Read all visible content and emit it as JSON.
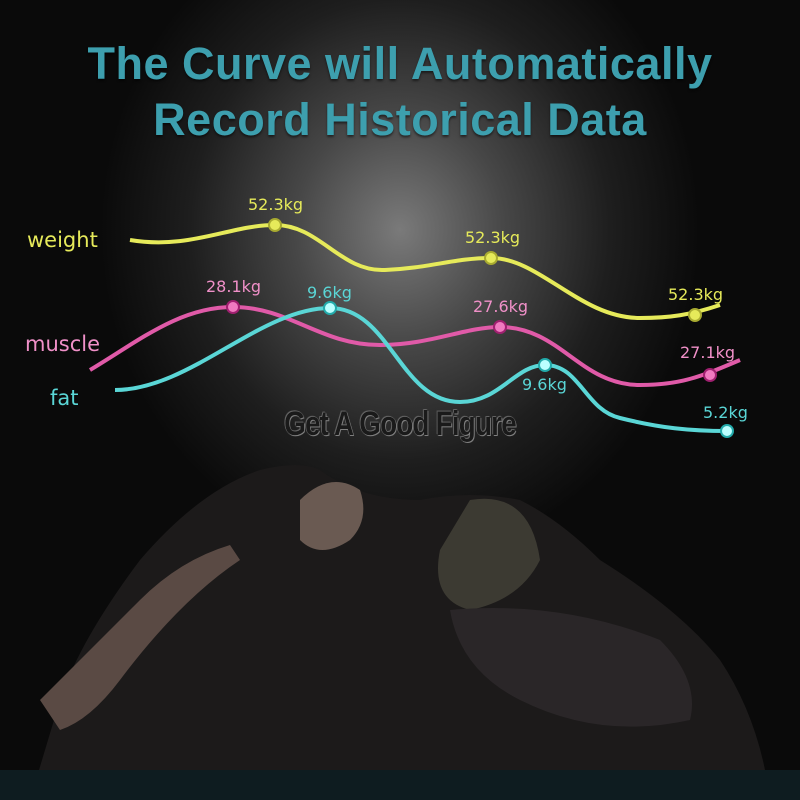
{
  "title": {
    "line1": "The Curve will Automatically",
    "line2": "Record Historical Data"
  },
  "slogan": "Get A Good Figure",
  "colors": {
    "title": "#3d9fae",
    "weight": "#e6ea5a",
    "muscle": "#e05aa8",
    "fat": "#5ad6d6"
  },
  "curves": [
    {
      "name": "weight",
      "points": [
        "52.3kg",
        "52.3kg",
        "52.3kg"
      ]
    },
    {
      "name": "muscle",
      "points": [
        "28.1kg",
        "27.6kg",
        "27.1kg"
      ]
    },
    {
      "name": "fat",
      "points": [
        "9.6kg",
        "9.6kg",
        "5.2kg"
      ]
    }
  ]
}
